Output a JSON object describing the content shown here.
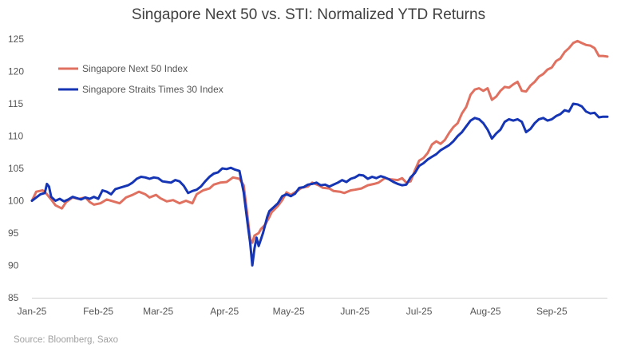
{
  "chart_data": {
    "type": "line",
    "title": "Singapore Next 50 vs. STI: Normalized YTD Returns",
    "xlabel": "",
    "ylabel": "",
    "ylim": [
      85,
      125
    ],
    "yticks": [
      85,
      90,
      95,
      100,
      105,
      110,
      115,
      120,
      125
    ],
    "xlim": [
      0,
      269
    ],
    "xticks": [
      {
        "label": "Jan-25",
        "day": 0
      },
      {
        "label": "Feb-25",
        "day": 31
      },
      {
        "label": "Mar-25",
        "day": 59
      },
      {
        "label": "Apr-25",
        "day": 90
      },
      {
        "label": "May-25",
        "day": 120
      },
      {
        "label": "Jun-25",
        "day": 151
      },
      {
        "label": "Jul-25",
        "day": 181
      },
      {
        "label": "Aug-25",
        "day": 212
      },
      {
        "label": "Sep-25",
        "day": 243
      }
    ],
    "legend_position": "top-left",
    "series": [
      {
        "name": "Singapore Next 50 Index",
        "color": "#e07060",
        "points": [
          [
            0,
            100.0
          ],
          [
            2,
            101.4
          ],
          [
            5,
            101.6
          ],
          [
            7,
            101.0
          ],
          [
            9,
            100.2
          ],
          [
            11,
            99.3
          ],
          [
            14,
            98.8
          ],
          [
            16,
            99.8
          ],
          [
            19,
            100.5
          ],
          [
            22,
            100.3
          ],
          [
            25,
            100.5
          ],
          [
            27,
            99.8
          ],
          [
            29,
            99.4
          ],
          [
            32,
            99.6
          ],
          [
            35,
            100.2
          ],
          [
            38,
            99.9
          ],
          [
            41,
            99.6
          ],
          [
            44,
            100.5
          ],
          [
            47,
            100.9
          ],
          [
            50,
            101.4
          ],
          [
            53,
            101.0
          ],
          [
            55,
            100.5
          ],
          [
            58,
            100.9
          ],
          [
            60,
            100.4
          ],
          [
            63,
            99.9
          ],
          [
            66,
            100.1
          ],
          [
            69,
            99.6
          ],
          [
            72,
            100.0
          ],
          [
            75,
            99.6
          ],
          [
            77,
            101.0
          ],
          [
            80,
            101.6
          ],
          [
            83,
            101.9
          ],
          [
            85,
            102.5
          ],
          [
            88,
            102.8
          ],
          [
            91,
            102.9
          ],
          [
            94,
            103.6
          ],
          [
            97,
            103.4
          ],
          [
            99,
            102.4
          ],
          [
            101,
            97.0
          ],
          [
            102,
            94.0
          ],
          [
            103,
            93.5
          ],
          [
            104,
            94.6
          ],
          [
            106,
            95.0
          ],
          [
            107,
            95.6
          ],
          [
            109,
            96.3
          ],
          [
            111,
            97.5
          ],
          [
            112,
            98.2
          ],
          [
            115,
            99.2
          ],
          [
            117,
            100.1
          ],
          [
            119,
            101.3
          ],
          [
            121,
            100.9
          ],
          [
            124,
            101.5
          ],
          [
            126,
            102.0
          ],
          [
            129,
            102.2
          ],
          [
            131,
            102.8
          ],
          [
            134,
            102.4
          ],
          [
            136,
            102.0
          ],
          [
            139,
            101.9
          ],
          [
            141,
            101.5
          ],
          [
            144,
            101.4
          ],
          [
            146,
            101.2
          ],
          [
            149,
            101.6
          ],
          [
            151,
            101.7
          ],
          [
            154,
            101.9
          ],
          [
            157,
            102.4
          ],
          [
            160,
            102.6
          ],
          [
            162,
            102.8
          ],
          [
            165,
            103.5
          ],
          [
            168,
            103.3
          ],
          [
            171,
            103.2
          ],
          [
            173,
            103.5
          ],
          [
            175,
            102.8
          ],
          [
            177,
            103.0
          ],
          [
            179,
            104.7
          ],
          [
            181,
            106.2
          ],
          [
            183,
            106.6
          ],
          [
            185,
            107.4
          ],
          [
            187,
            108.7
          ],
          [
            189,
            109.2
          ],
          [
            191,
            108.8
          ],
          [
            193,
            109.4
          ],
          [
            195,
            110.5
          ],
          [
            197,
            111.4
          ],
          [
            199,
            112.0
          ],
          [
            201,
            113.5
          ],
          [
            203,
            114.5
          ],
          [
            205,
            116.4
          ],
          [
            207,
            117.2
          ],
          [
            209,
            117.4
          ],
          [
            211,
            117.0
          ],
          [
            213,
            117.4
          ],
          [
            215,
            115.6
          ],
          [
            217,
            116.1
          ],
          [
            219,
            117.0
          ],
          [
            221,
            117.6
          ],
          [
            223,
            117.5
          ],
          [
            225,
            118.0
          ],
          [
            227,
            118.4
          ],
          [
            229,
            117.0
          ],
          [
            231,
            116.9
          ],
          [
            233,
            117.8
          ],
          [
            235,
            118.4
          ],
          [
            237,
            119.2
          ],
          [
            239,
            119.6
          ],
          [
            241,
            120.3
          ],
          [
            243,
            120.6
          ],
          [
            245,
            121.6
          ],
          [
            247,
            122.0
          ],
          [
            249,
            123.0
          ],
          [
            251,
            123.6
          ],
          [
            253,
            124.4
          ],
          [
            255,
            124.7
          ],
          [
            257,
            124.4
          ],
          [
            259,
            124.1
          ],
          [
            261,
            124.0
          ],
          [
            263,
            123.6
          ],
          [
            265,
            122.4
          ],
          [
            267,
            122.4
          ],
          [
            269,
            122.3
          ]
        ]
      },
      {
        "name": "Singapore Straits Times 30 Index",
        "color": "#1535b5",
        "points": [
          [
            0,
            100.0
          ],
          [
            2,
            100.5
          ],
          [
            4,
            101.0
          ],
          [
            6,
            101.2
          ],
          [
            7,
            102.6
          ],
          [
            8,
            102.2
          ],
          [
            9,
            100.6
          ],
          [
            11,
            100.0
          ],
          [
            13,
            100.3
          ],
          [
            15,
            99.9
          ],
          [
            17,
            100.2
          ],
          [
            19,
            100.6
          ],
          [
            21,
            100.4
          ],
          [
            23,
            100.2
          ],
          [
            25,
            100.5
          ],
          [
            27,
            100.3
          ],
          [
            29,
            100.6
          ],
          [
            31,
            100.3
          ],
          [
            33,
            101.6
          ],
          [
            35,
            101.4
          ],
          [
            37,
            101.0
          ],
          [
            39,
            101.8
          ],
          [
            41,
            102.0
          ],
          [
            43,
            102.2
          ],
          [
            45,
            102.4
          ],
          [
            47,
            102.8
          ],
          [
            49,
            103.4
          ],
          [
            51,
            103.7
          ],
          [
            53,
            103.6
          ],
          [
            55,
            103.4
          ],
          [
            57,
            103.6
          ],
          [
            59,
            103.5
          ],
          [
            61,
            103.0
          ],
          [
            63,
            102.9
          ],
          [
            65,
            102.8
          ],
          [
            67,
            103.2
          ],
          [
            69,
            103.0
          ],
          [
            71,
            102.3
          ],
          [
            73,
            101.2
          ],
          [
            75,
            101.5
          ],
          [
            77,
            101.7
          ],
          [
            79,
            102.2
          ],
          [
            81,
            103.0
          ],
          [
            83,
            103.7
          ],
          [
            85,
            104.2
          ],
          [
            87,
            104.4
          ],
          [
            89,
            105.0
          ],
          [
            91,
            104.9
          ],
          [
            93,
            105.1
          ],
          [
            95,
            104.8
          ],
          [
            97,
            104.6
          ],
          [
            99,
            101.3
          ],
          [
            101,
            96.0
          ],
          [
            102,
            93.5
          ],
          [
            103,
            90.0
          ],
          [
            104,
            92.6
          ],
          [
            105,
            94.3
          ],
          [
            106,
            93.0
          ],
          [
            108,
            95.0
          ],
          [
            110,
            97.5
          ],
          [
            111,
            98.4
          ],
          [
            113,
            99.0
          ],
          [
            115,
            99.6
          ],
          [
            117,
            100.7
          ],
          [
            119,
            101.0
          ],
          [
            121,
            100.7
          ],
          [
            123,
            101.1
          ],
          [
            125,
            102.0
          ],
          [
            127,
            102.1
          ],
          [
            129,
            102.5
          ],
          [
            131,
            102.6
          ],
          [
            133,
            102.8
          ],
          [
            135,
            102.4
          ],
          [
            137,
            102.5
          ],
          [
            139,
            102.2
          ],
          [
            141,
            102.5
          ],
          [
            143,
            102.8
          ],
          [
            145,
            103.2
          ],
          [
            147,
            102.9
          ],
          [
            149,
            103.4
          ],
          [
            151,
            103.6
          ],
          [
            153,
            104.0
          ],
          [
            155,
            103.9
          ],
          [
            157,
            103.4
          ],
          [
            159,
            103.7
          ],
          [
            161,
            103.5
          ],
          [
            163,
            103.8
          ],
          [
            165,
            103.6
          ],
          [
            167,
            103.3
          ],
          [
            169,
            102.9
          ],
          [
            171,
            102.6
          ],
          [
            173,
            102.4
          ],
          [
            175,
            102.5
          ],
          [
            177,
            103.6
          ],
          [
            179,
            104.3
          ],
          [
            181,
            105.4
          ],
          [
            183,
            105.8
          ],
          [
            185,
            106.4
          ],
          [
            187,
            106.8
          ],
          [
            189,
            107.2
          ],
          [
            191,
            107.8
          ],
          [
            193,
            108.2
          ],
          [
            195,
            108.6
          ],
          [
            197,
            109.2
          ],
          [
            199,
            110.0
          ],
          [
            201,
            110.6
          ],
          [
            203,
            111.5
          ],
          [
            205,
            112.4
          ],
          [
            207,
            112.8
          ],
          [
            209,
            112.6
          ],
          [
            211,
            112.0
          ],
          [
            213,
            111.0
          ],
          [
            215,
            109.6
          ],
          [
            217,
            110.4
          ],
          [
            219,
            111.0
          ],
          [
            221,
            112.2
          ],
          [
            223,
            112.6
          ],
          [
            225,
            112.4
          ],
          [
            227,
            112.6
          ],
          [
            229,
            112.2
          ],
          [
            231,
            110.6
          ],
          [
            233,
            111.1
          ],
          [
            235,
            112.0
          ],
          [
            237,
            112.6
          ],
          [
            239,
            112.8
          ],
          [
            241,
            112.4
          ],
          [
            243,
            112.6
          ],
          [
            245,
            113.1
          ],
          [
            247,
            113.4
          ],
          [
            249,
            114.0
          ],
          [
            251,
            113.8
          ],
          [
            253,
            115.0
          ],
          [
            255,
            114.9
          ],
          [
            257,
            114.6
          ],
          [
            259,
            113.8
          ],
          [
            261,
            113.5
          ],
          [
            263,
            113.6
          ],
          [
            265,
            112.9
          ],
          [
            267,
            113.0
          ],
          [
            269,
            113.0
          ]
        ]
      }
    ]
  },
  "source": "Source: Bloomberg, Saxo"
}
